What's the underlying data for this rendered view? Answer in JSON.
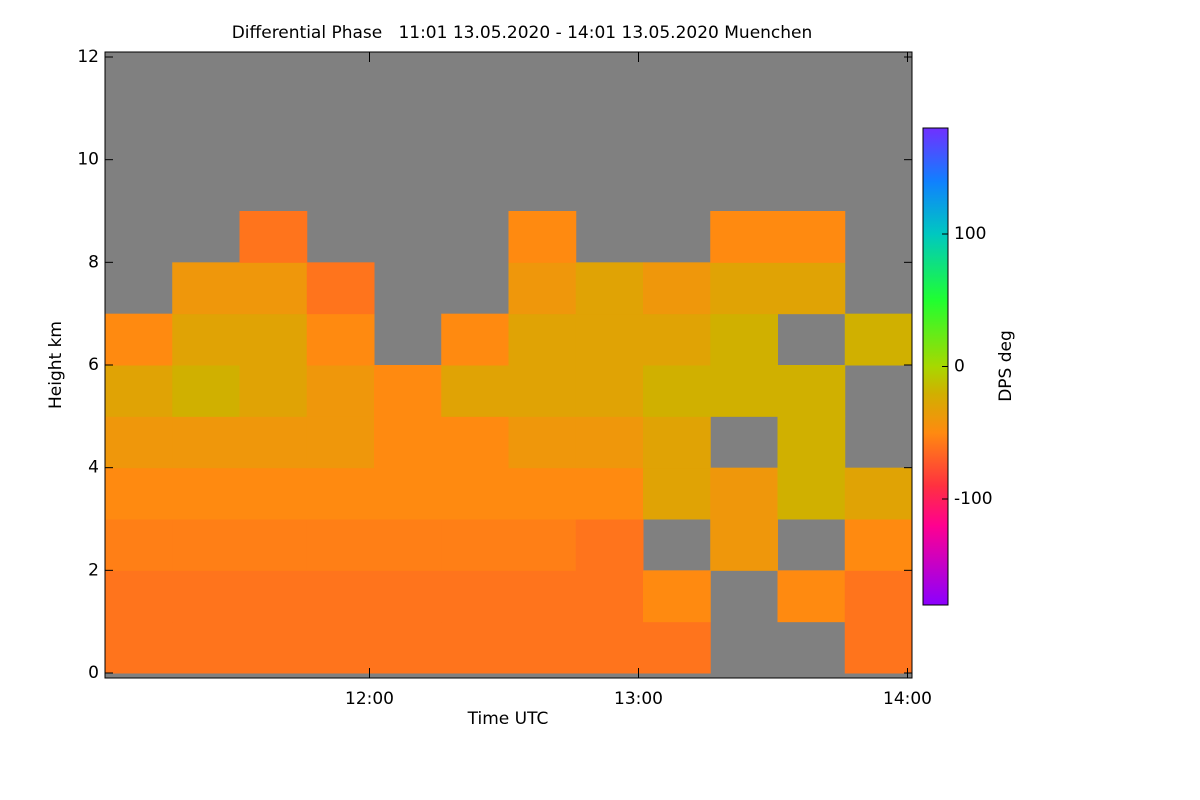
{
  "chart_data": {
    "type": "heatmap",
    "title": "Differential Phase   11:01 13.05.2020 - 14:01 13.05.2020 Muenchen",
    "x_label": "Time UTC",
    "y_label": "Height km",
    "colorbar_label": "DPS deg",
    "x_edges": [
      11.0167,
      11.2667,
      11.5167,
      11.7667,
      12.0167,
      12.2667,
      12.5167,
      12.7667,
      13.0167,
      13.2667,
      13.5167,
      13.7667,
      14.0167
    ],
    "y_edges": [
      0,
      1,
      2,
      3,
      4,
      5,
      6,
      7,
      8,
      9,
      10,
      11,
      12
    ],
    "values": [
      [
        -60,
        -60,
        -60,
        -60,
        -60,
        -60,
        -60,
        -60,
        -60,
        null,
        null,
        -60
      ],
      [
        -60,
        -60,
        -60,
        -60,
        -60,
        -60,
        -60,
        -60,
        -50,
        null,
        -50,
        -60
      ],
      [
        -55,
        -55,
        -55,
        -55,
        -55,
        -55,
        -55,
        -60,
        null,
        -40,
        null,
        -50
      ],
      [
        -50,
        -50,
        -50,
        -50,
        -50,
        -50,
        -50,
        -50,
        -30,
        -40,
        -20,
        -30
      ],
      [
        -40,
        -40,
        -40,
        -40,
        -50,
        -50,
        -40,
        -40,
        -30,
        null,
        -20,
        null
      ],
      [
        -30,
        -20,
        -30,
        -40,
        -50,
        -30,
        -30,
        -30,
        -20,
        -20,
        -20,
        null
      ],
      [
        -50,
        -30,
        -30,
        -50,
        null,
        -50,
        -30,
        -30,
        -30,
        -20,
        null,
        -20
      ],
      [
        null,
        -40,
        -40,
        -60,
        null,
        null,
        -40,
        -30,
        -40,
        -30,
        -30,
        null
      ],
      [
        null,
        null,
        -60,
        null,
        null,
        null,
        -50,
        null,
        null,
        -50,
        -50,
        null
      ],
      [
        null,
        null,
        null,
        null,
        null,
        null,
        null,
        null,
        null,
        null,
        null,
        null
      ],
      [
        null,
        null,
        null,
        null,
        null,
        null,
        null,
        null,
        null,
        null,
        null,
        null
      ],
      [
        null,
        null,
        null,
        null,
        null,
        null,
        null,
        null,
        null,
        null,
        null,
        null
      ]
    ],
    "missing_color": "#808080",
    "xlim": [
      11.0167,
      14.0167
    ],
    "xticks": [
      {
        "value": 12,
        "label": "12:00"
      },
      {
        "value": 13,
        "label": "13:00"
      },
      {
        "value": 14,
        "label": "14:00"
      }
    ],
    "ylim": [
      0,
      12
    ],
    "yticks": [
      0,
      2,
      4,
      6,
      8,
      10,
      12
    ],
    "clim": [
      -180,
      180
    ],
    "cticks": [
      -100,
      0,
      100
    ],
    "colormap": [
      {
        "value": -180,
        "color": "#8a00ff"
      },
      {
        "value": -120,
        "color": "#ff0090"
      },
      {
        "value": -90,
        "color": "#ff3040"
      },
      {
        "value": -50,
        "color": "#ff8a10"
      },
      {
        "value": -20,
        "color": "#d0b000"
      },
      {
        "value": 0,
        "color": "#a8d800"
      },
      {
        "value": 50,
        "color": "#20ff30"
      },
      {
        "value": 100,
        "color": "#00c8c0"
      },
      {
        "value": 140,
        "color": "#1080ff"
      },
      {
        "value": 180,
        "color": "#7030ff"
      }
    ]
  }
}
